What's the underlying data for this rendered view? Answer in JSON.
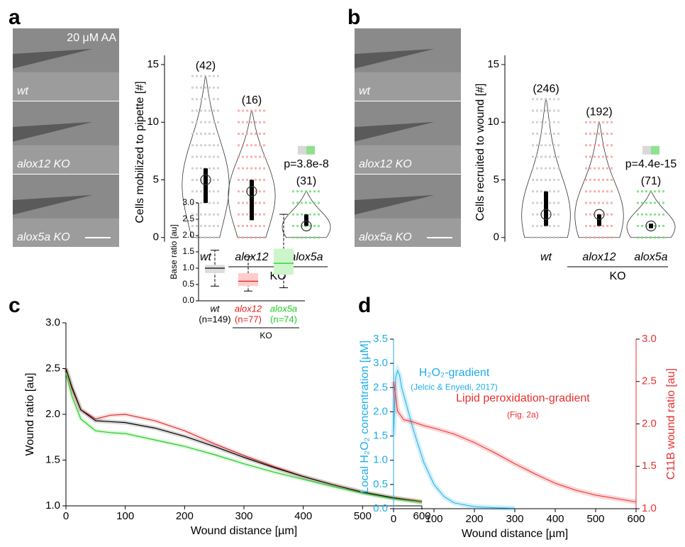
{
  "chart_data": [
    {
      "panel": "a",
      "type": "violin",
      "ylabel": "Cells mobilized to pipette [#]",
      "categories": [
        "wt",
        "alox12",
        "alox5a"
      ],
      "group_label": "KO",
      "images": [
        "wt",
        "alox12 KO",
        "alox5a KO"
      ],
      "image_note": "20 μM AA",
      "n_labels": [
        "(42)",
        "(16)",
        "(31)"
      ],
      "medians": [
        5,
        4,
        1
      ],
      "q1": [
        3,
        1.5,
        1
      ],
      "q3": [
        6,
        5,
        2
      ],
      "min_values": [
        0,
        0,
        0
      ],
      "max_values": [
        14,
        11,
        4
      ],
      "colors": [
        "#c8c8c8",
        "#f4a0a0",
        "#6fdc6f"
      ],
      "annotation": "p=3.8e-8",
      "ylim": [
        -1,
        15.8
      ],
      "yticks": [
        0,
        5,
        10,
        15
      ]
    },
    {
      "panel": "b",
      "type": "violin",
      "ylabel": "Cells recruited to wound [#]",
      "categories": [
        "wt",
        "alox12",
        "alox5a"
      ],
      "group_label": "KO",
      "images": [
        "wt",
        "alox12 KO",
        "alox5a KO"
      ],
      "n_labels": [
        "(246)",
        "(192)",
        "(71)"
      ],
      "medians": [
        2,
        2,
        1
      ],
      "q1": [
        1,
        1,
        0.8
      ],
      "q3": [
        4,
        2,
        1.2
      ],
      "min_values": [
        0,
        0,
        0
      ],
      "max_values": [
        12,
        10,
        4
      ],
      "colors": [
        "#c8c8c8",
        "#f4a0a0",
        "#6fdc6f"
      ],
      "annotation": "p=4.4e-15",
      "ylim": [
        -1,
        15.8
      ],
      "yticks": [
        0,
        5,
        10,
        15
      ]
    },
    {
      "panel": "c",
      "type": "line",
      "xlabel": "Wound distance [µm]",
      "ylabel": "Wound ratio [au]",
      "xlim": [
        0,
        600
      ],
      "xticks": [
        0,
        100,
        200,
        300,
        400,
        500,
        600
      ],
      "ylim": [
        1,
        3
      ],
      "yticks": [
        {
          "value": 1,
          "label": "1.0"
        },
        {
          "value": 1.5,
          "label": "1.5"
        },
        {
          "value": 2,
          "label": "2.0"
        },
        {
          "value": 2.5,
          "label": "2.5"
        },
        {
          "value": 3,
          "label": "3.0"
        }
      ],
      "series": [
        {
          "color": "#e03030",
          "x": [
            0,
            10,
            25,
            50,
            75,
            100,
            150,
            200,
            250,
            300,
            350,
            400,
            450,
            500,
            550,
            600
          ],
          "values": [
            2.5,
            2.28,
            2.05,
            1.95,
            1.99,
            2.0,
            1.93,
            1.82,
            1.68,
            1.55,
            1.43,
            1.32,
            1.23,
            1.15,
            1.09,
            1.05
          ]
        },
        {
          "color": "#000000",
          "x": [
            0,
            10,
            25,
            50,
            75,
            100,
            150,
            200,
            250,
            300,
            350,
            400,
            450,
            500,
            550,
            600
          ],
          "values": [
            2.5,
            2.3,
            2.05,
            1.93,
            1.92,
            1.91,
            1.85,
            1.76,
            1.65,
            1.53,
            1.42,
            1.32,
            1.23,
            1.15,
            1.09,
            1.04
          ]
        },
        {
          "color": "#22cc22",
          "x": [
            0,
            10,
            25,
            50,
            75,
            100,
            150,
            200,
            250,
            300,
            350,
            400,
            450,
            500,
            550,
            600
          ],
          "values": [
            2.45,
            2.2,
            1.95,
            1.82,
            1.8,
            1.79,
            1.72,
            1.65,
            1.56,
            1.46,
            1.37,
            1.29,
            1.21,
            1.14,
            1.08,
            1.04
          ]
        }
      ]
    },
    {
      "type": "box",
      "ylabel": "Base ratio [au]",
      "categories": [
        "wt",
        "alox12",
        "alox5a"
      ],
      "n_labels": [
        "(n=149)",
        "(n=77)",
        "(n=74)"
      ],
      "group_label": "KO",
      "colors": [
        "#000000",
        "#e02020",
        "#22cc22"
      ],
      "fills": [
        "#dddddd",
        "#ffcccc",
        "#ccf5cc"
      ],
      "whisker_low": [
        0.45,
        0.3,
        0.4
      ],
      "q1": [
        0.85,
        0.45,
        0.8
      ],
      "medians": [
        1.0,
        0.6,
        1.15
      ],
      "q3": [
        1.1,
        0.85,
        1.6
      ],
      "whisker_high": [
        1.55,
        1.35,
        2.65
      ],
      "ylim": [
        0,
        3
      ],
      "yticks": [
        {
          "value": 0,
          "label": "0.0"
        },
        {
          "value": 0.5,
          "label": "0.5"
        },
        {
          "value": 1,
          "label": "1.0"
        },
        {
          "value": 1.5,
          "label": "1.5"
        },
        {
          "value": 2,
          "label": "2.0"
        },
        {
          "value": 2.5,
          "label": "2.5"
        },
        {
          "value": 3,
          "label": "3.0"
        }
      ]
    },
    {
      "panel": "d",
      "type": "dual-line",
      "xlabel": "Wound distance [µm]",
      "ylabel": "Local H₂O₂ concentration [µM]",
      "y2label": "C11B wound ratio [au]",
      "annotations": [
        "H₂O₂-gradient",
        "(Jelcic & Enyedi, 2017)",
        "Lipid peroxidation-gradient",
        "(Fig. 2a)"
      ],
      "xlim": [
        0,
        600
      ],
      "xticks": [
        0,
        100,
        200,
        300,
        400,
        500,
        600
      ],
      "ylim": [
        0,
        3.5
      ],
      "yticks": [
        {
          "value": 0,
          "label": "0.0"
        },
        {
          "value": 0.5,
          "label": "0.5"
        },
        {
          "value": 1,
          "label": "1.0"
        },
        {
          "value": 1.5,
          "label": "1.5"
        },
        {
          "value": 2,
          "label": "2.0"
        },
        {
          "value": 2.5,
          "label": "2.5"
        },
        {
          "value": 3,
          "label": "3.0"
        },
        {
          "value": 3.5,
          "label": "3.5"
        }
      ],
      "y2lim": [
        1,
        3
      ],
      "y2ticks": [
        {
          "value": 1,
          "label": "1.0"
        },
        {
          "value": 1.5,
          "label": "1.5"
        },
        {
          "value": 2,
          "label": "2.0"
        },
        {
          "value": 2.5,
          "label": "2.5"
        },
        {
          "value": 3,
          "label": "3.0"
        }
      ],
      "series": [
        {
          "color": "#1eaee8",
          "x": [
            0,
            5,
            10,
            15,
            20,
            30,
            50,
            75,
            100,
            125,
            150,
            200,
            250,
            300
          ],
          "values": [
            1.5,
            2.7,
            2.85,
            2.75,
            2.5,
            2.2,
            1.6,
            0.95,
            0.5,
            0.25,
            0.12,
            0.04,
            0.02,
            0.01
          ]
        },
        {
          "color": "#e83030",
          "axis": "y2",
          "x": [
            0,
            10,
            25,
            50,
            75,
            100,
            150,
            200,
            250,
            300,
            350,
            400,
            450,
            500,
            550,
            600
          ],
          "values": [
            2.5,
            2.15,
            2.05,
            2.02,
            1.98,
            1.95,
            1.88,
            1.78,
            1.66,
            1.53,
            1.41,
            1.3,
            1.22,
            1.16,
            1.12,
            1.08
          ]
        }
      ]
    }
  ]
}
